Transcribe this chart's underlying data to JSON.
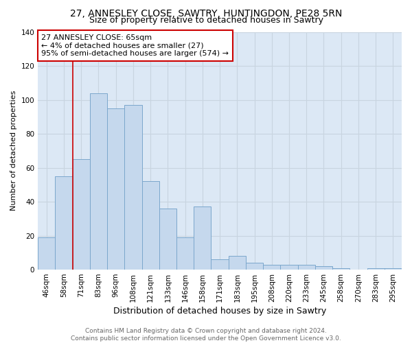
{
  "title": "27, ANNESLEY CLOSE, SAWTRY, HUNTINGDON, PE28 5RN",
  "subtitle": "Size of property relative to detached houses in Sawtry",
  "xlabel": "Distribution of detached houses by size in Sawtry",
  "ylabel": "Number of detached properties",
  "categories": [
    "46sqm",
    "58sqm",
    "71sqm",
    "83sqm",
    "96sqm",
    "108sqm",
    "121sqm",
    "133sqm",
    "146sqm",
    "158sqm",
    "171sqm",
    "183sqm",
    "195sqm",
    "208sqm",
    "220sqm",
    "233sqm",
    "245sqm",
    "258sqm",
    "270sqm",
    "283sqm",
    "295sqm"
  ],
  "values": [
    19,
    55,
    65,
    104,
    95,
    97,
    52,
    36,
    19,
    37,
    6,
    8,
    4,
    3,
    3,
    3,
    2,
    1,
    0,
    1,
    1
  ],
  "bar_color": "#c5d8ed",
  "bar_edge_color": "#7ba7cc",
  "vline_x": 1.5,
  "vline_color": "#cc0000",
  "annotation_line1": "27 ANNESLEY CLOSE: 65sqm",
  "annotation_line2": "← 4% of detached houses are smaller (27)",
  "annotation_line3": "95% of semi-detached houses are larger (574) →",
  "annotation_box_color": "#ffffff",
  "annotation_box_edge": "#cc0000",
  "ylim": [
    0,
    140
  ],
  "yticks": [
    0,
    20,
    40,
    60,
    80,
    100,
    120,
    140
  ],
  "grid_color": "#c8d4e0",
  "background_color": "#dce8f5",
  "footer_line1": "Contains HM Land Registry data © Crown copyright and database right 2024.",
  "footer_line2": "Contains public sector information licensed under the Open Government Licence v3.0.",
  "title_fontsize": 10,
  "subtitle_fontsize": 9,
  "xlabel_fontsize": 9,
  "ylabel_fontsize": 8,
  "tick_fontsize": 7.5,
  "annotation_fontsize": 8,
  "footer_fontsize": 6.5
}
